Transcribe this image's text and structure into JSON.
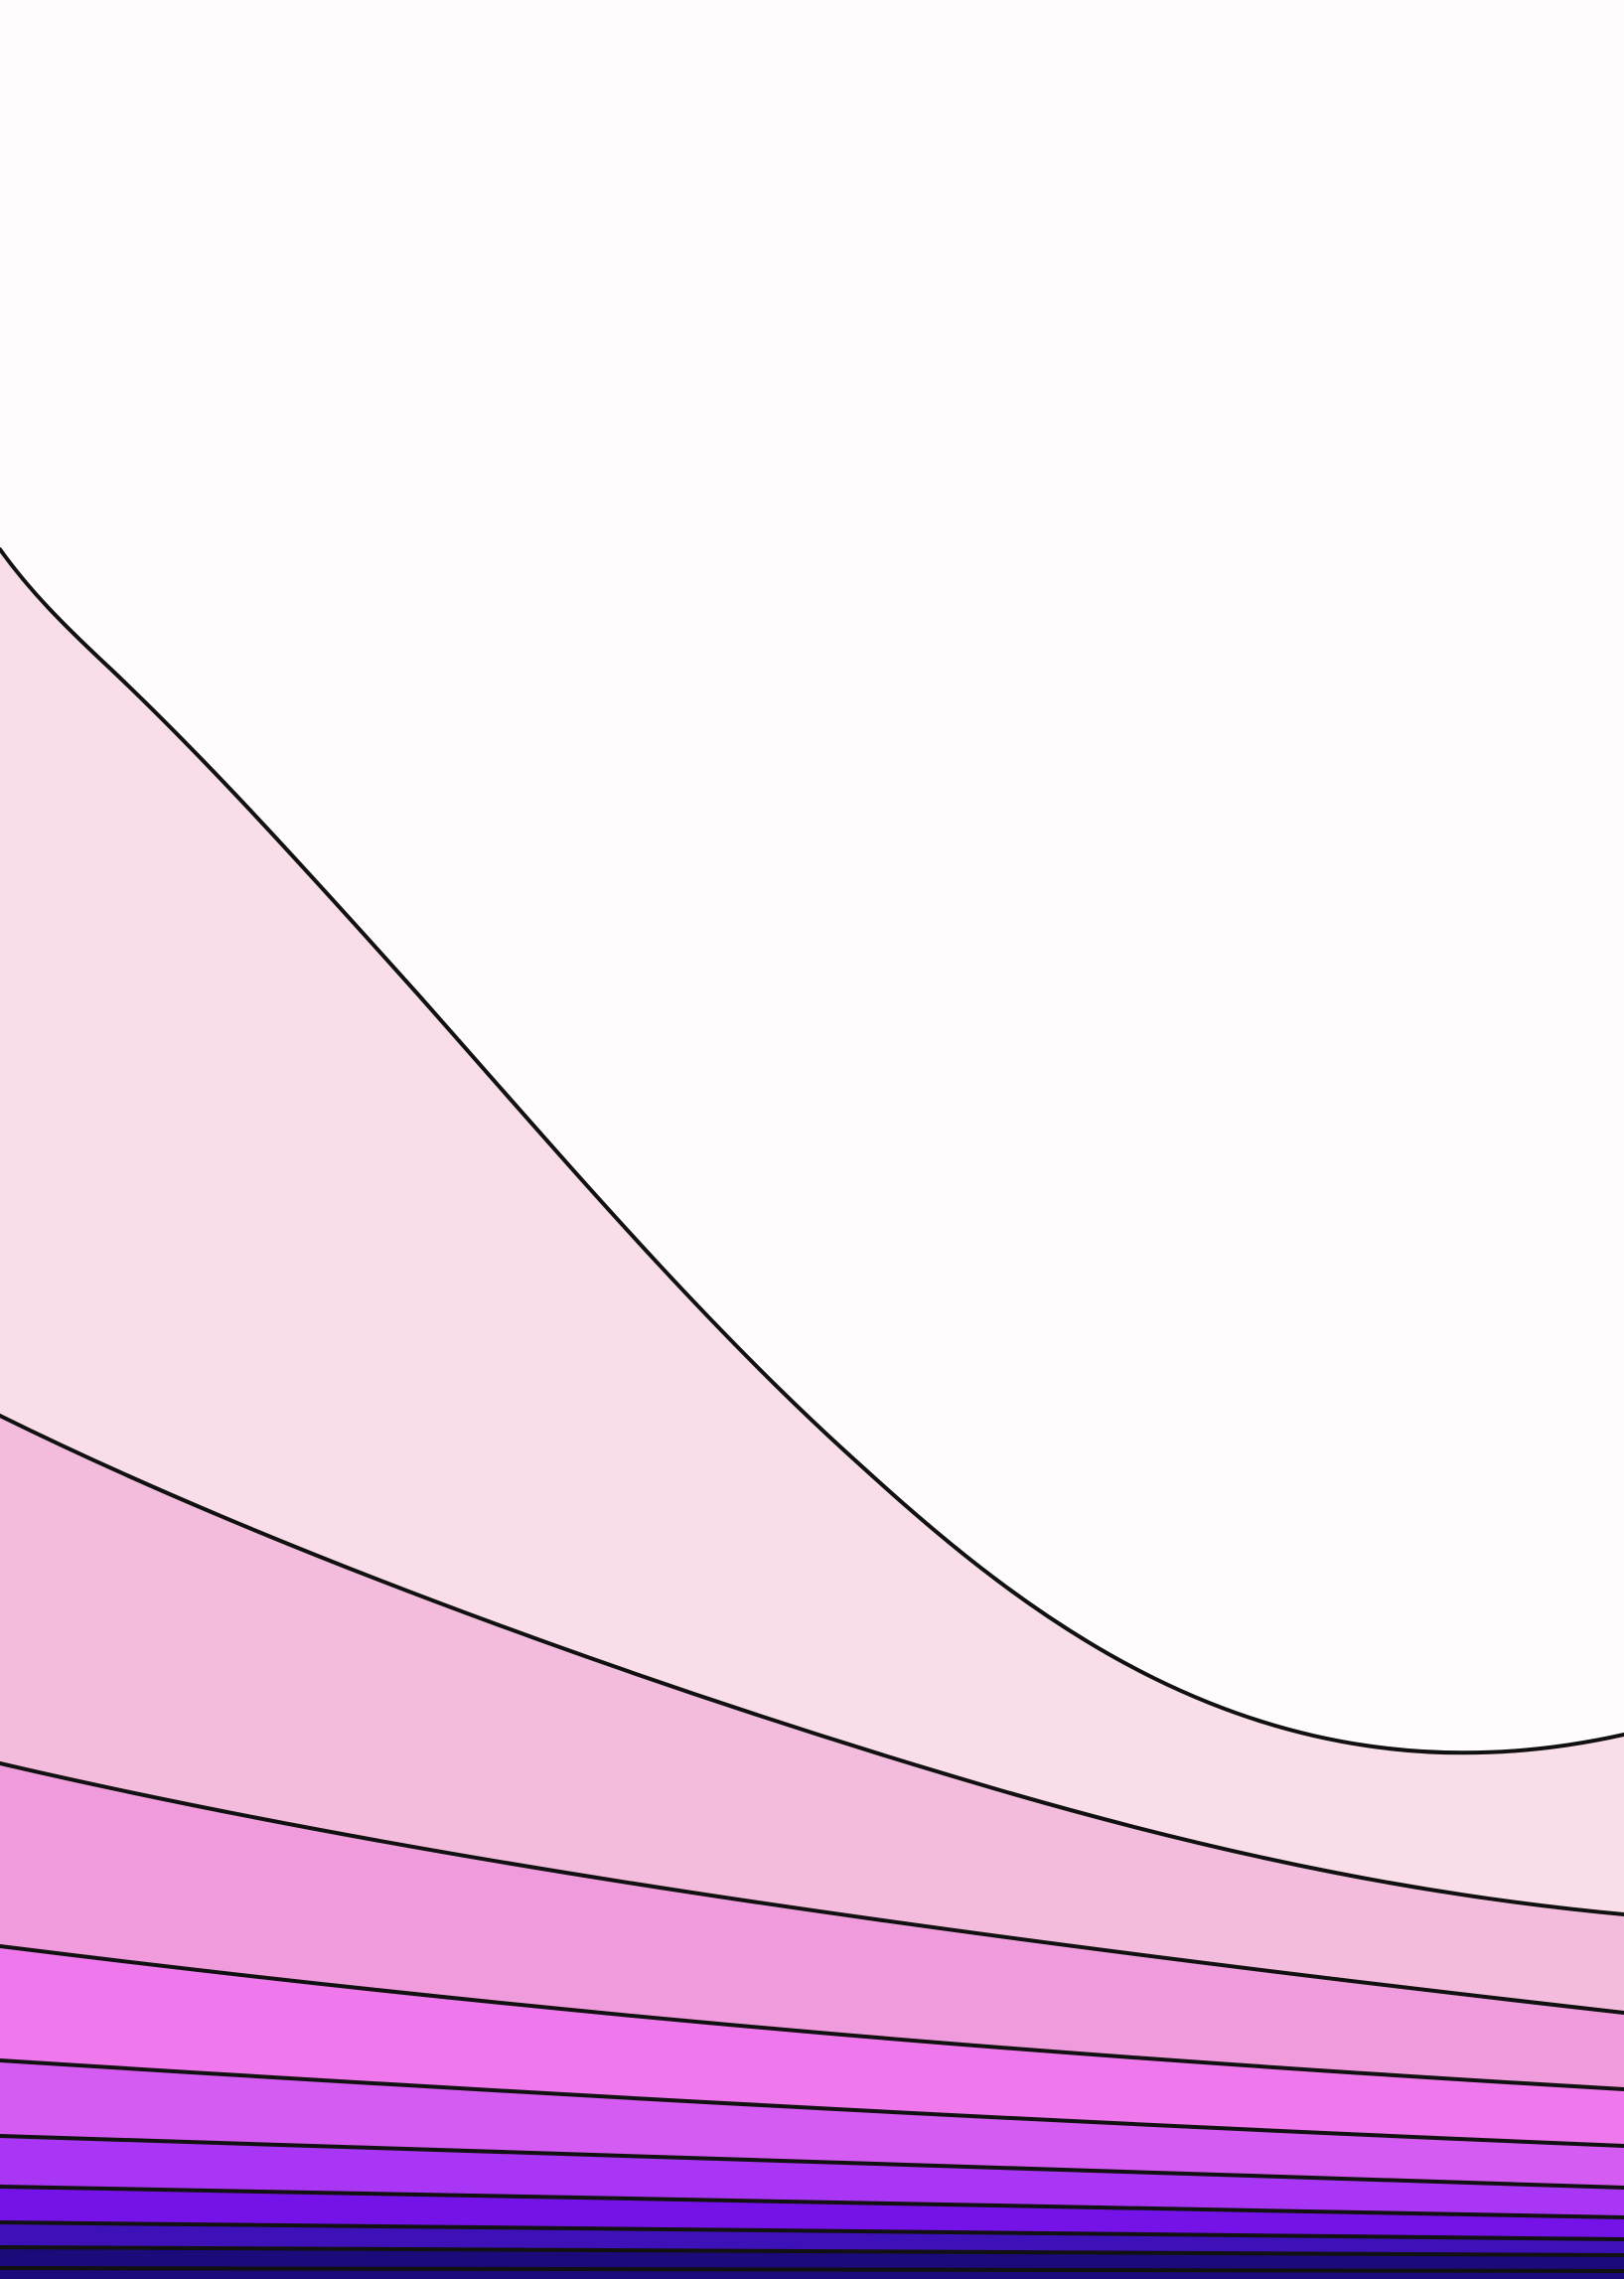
{
  "artwork": {
    "kind": "filled-contour-bands",
    "colors": {
      "background": "#fefcfd",
      "band_1": "#f9dde8",
      "band_2": "#f3bcdc",
      "band_3": "#f09cdc",
      "band_4": "#ee78ec",
      "band_5": "#d45cf2",
      "band_6": "#a935f5",
      "band_7": "#7512e8",
      "band_8": "#3e10b8",
      "band_9": "#1a0a7a",
      "contour_line": "#111111"
    }
  }
}
